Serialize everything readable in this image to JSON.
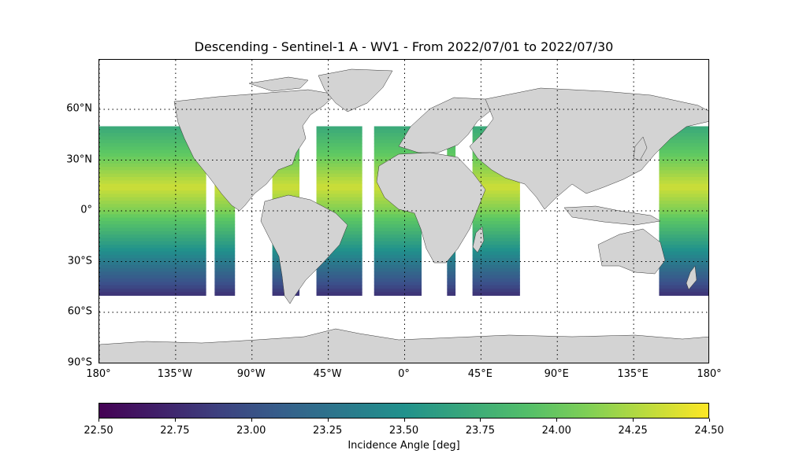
{
  "title": "Descending - Sentinel-1 A - WV1 - From 2022/07/01 to 2022/07/30",
  "map": {
    "land_color": "#d3d3d3",
    "ocean_color": "#ffffff",
    "grid_style": "dotted"
  },
  "lon_ticks": [
    {
      "lon": -180,
      "label": "180°"
    },
    {
      "lon": -135,
      "label": "135°W"
    },
    {
      "lon": -90,
      "label": "90°W"
    },
    {
      "lon": -45,
      "label": "45°W"
    },
    {
      "lon": 0,
      "label": "0°"
    },
    {
      "lon": 45,
      "label": "45°E"
    },
    {
      "lon": 90,
      "label": "90°E"
    },
    {
      "lon": 135,
      "label": "135°E"
    },
    {
      "lon": 180,
      "label": "180°"
    }
  ],
  "lat_ticks": [
    {
      "lat": 60,
      "label": "60°N"
    },
    {
      "lat": 30,
      "label": "30°N"
    },
    {
      "lat": 0,
      "label": "0°"
    },
    {
      "lat": -30,
      "label": "30°S"
    },
    {
      "lat": -60,
      "label": "60°S"
    },
    {
      "lat": -90,
      "label": "90°S"
    }
  ],
  "colorbar": {
    "label": "Incidence Angle [deg]",
    "min": 22.5,
    "max": 24.5,
    "colormap": "viridis",
    "ticks": [
      "22.50",
      "22.75",
      "23.00",
      "23.25",
      "23.50",
      "23.75",
      "24.00",
      "24.25",
      "24.50"
    ]
  },
  "data_extent": {
    "lat_min": -50,
    "lat_max": 50
  }
}
